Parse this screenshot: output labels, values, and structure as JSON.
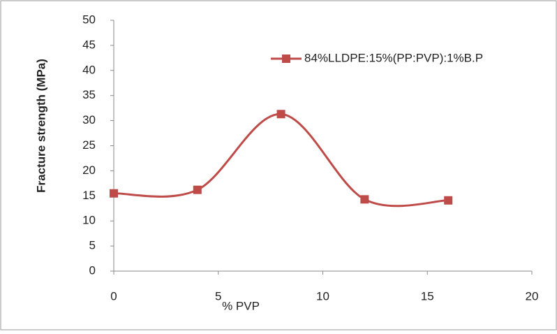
{
  "chart_data": {
    "type": "line",
    "x_label": "% PVP",
    "y_label": "Fracture strength (MPa)",
    "x": [
      0,
      4,
      8,
      12,
      16
    ],
    "series": [
      {
        "name": "84%LLDPE:15%(PP:PVP):1%B.P",
        "color": "#be4b48",
        "values": [
          15.5,
          16.2,
          31.3,
          14.3,
          14.1
        ]
      }
    ],
    "xlim": [
      0,
      20
    ],
    "xticks": [
      0,
      5,
      10,
      15,
      20
    ],
    "ylim": [
      0,
      50
    ],
    "yticks": [
      0,
      5,
      10,
      15,
      20,
      25,
      30,
      35,
      40,
      45,
      50
    ],
    "grid": false,
    "legend": "top-right",
    "smooth": true
  }
}
